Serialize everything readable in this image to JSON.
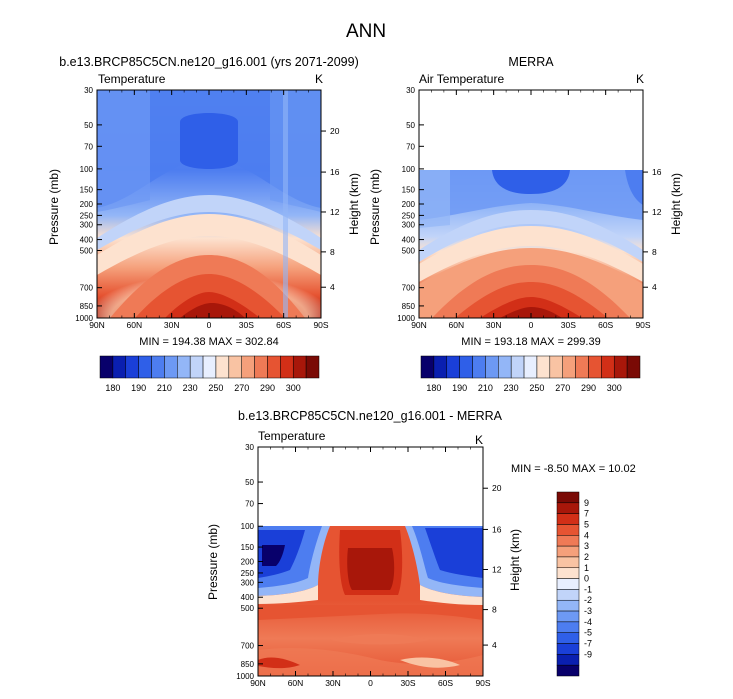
{
  "figure": {
    "title": "ANN"
  },
  "panels": [
    {
      "id": "p1",
      "header": "b.e13.BRCP85C5CN.ne120_g16.001 (yrs 2071-2099)",
      "left_label": "Temperature",
      "units": "K",
      "ylabel": "Pressure (mb)",
      "ylabel_right": "Height (km)",
      "stats": "MIN = 194.38  MAX = 302.84"
    },
    {
      "id": "p2",
      "header": "MERRA",
      "left_label": "Air Temperature",
      "units": "K",
      "ylabel": "Pressure (mb)",
      "ylabel_right": "Height (km)",
      "stats": "MIN = 193.18  MAX = 299.39"
    },
    {
      "id": "p3",
      "header": "b.e13.BRCP85C5CN.ne120_g16.001 - MERRA",
      "left_label": "Temperature",
      "units": "K",
      "ylabel": "Pressure (mb)",
      "ylabel_right": "Height (km)",
      "stats": "MIN =  -8.50  MAX =  10.02"
    }
  ],
  "chart_data": [
    {
      "type": "contour",
      "title": "b.e13.BRCP85C5CN.ne120_g16.001 (yrs 2071-2099)",
      "variable": "Temperature",
      "units": "K",
      "x_ticks": [
        "90N",
        "60N",
        "30N",
        "0",
        "30S",
        "60S",
        "90S"
      ],
      "y_ticks_pressure": [
        "30",
        "50",
        "70",
        "100",
        "150",
        "200",
        "250",
        "300",
        "400",
        "500",
        "700",
        "850",
        "1000"
      ],
      "y_ticks_height": [
        "20",
        "16",
        "12",
        "8",
        "4"
      ],
      "min": 194.38,
      "max": 302.84,
      "levels_description": "cold (~195-205 K) near 70 mb at equator; warm (~300 K) near 1000 mb at equator"
    },
    {
      "type": "contour",
      "title": "MERRA",
      "variable": "Air Temperature",
      "units": "K",
      "x_ticks": [
        "90N",
        "60N",
        "30N",
        "0",
        "30S",
        "60S",
        "90S"
      ],
      "y_ticks_pressure": [
        "30",
        "50",
        "70",
        "100",
        "150",
        "200",
        "250",
        "300",
        "400",
        "500",
        "700",
        "850",
        "1000"
      ],
      "y_ticks_height": [
        "16",
        "12",
        "8",
        "4"
      ],
      "min": 193.18,
      "max": 299.39,
      "data_top_pressure": 100
    },
    {
      "type": "contour",
      "title": "b.e13.BRCP85C5CN.ne120_g16.001 - MERRA",
      "variable": "Temperature",
      "units": "K",
      "x_ticks": [
        "90N",
        "60N",
        "30N",
        "0",
        "30S",
        "60S",
        "90S"
      ],
      "y_ticks_pressure": [
        "30",
        "50",
        "70",
        "100",
        "150",
        "200",
        "250",
        "300",
        "400",
        "500",
        "700",
        "850",
        "1000"
      ],
      "y_ticks_height": [
        "20",
        "16",
        "12",
        "8",
        "4"
      ],
      "min": -8.5,
      "max": 10.02,
      "data_top_pressure": 100
    }
  ],
  "colorbar_abs": {
    "labels": [
      "180",
      "190",
      "210",
      "230",
      "250",
      "270",
      "290",
      "300"
    ],
    "colors": [
      "#08006b",
      "#0a1fb0",
      "#1a3fd8",
      "#2f5fe8",
      "#4d7df0",
      "#6d99f4",
      "#93b6f7",
      "#c1d4f9",
      "#e8efff",
      "#fde2cf",
      "#f9c3a3",
      "#f5a07b",
      "#ef7a56",
      "#e65432",
      "#d22f17",
      "#a8170a",
      "#7a0a05"
    ]
  },
  "colorbar_diff": {
    "labels": [
      "9",
      "7",
      "5",
      "4",
      "3",
      "2",
      "1",
      "0",
      "-1",
      "-2",
      "-3",
      "-4",
      "-5",
      "-7",
      "-9"
    ],
    "colors": [
      "#7a0a05",
      "#a8170a",
      "#d22f17",
      "#e65432",
      "#ef7a56",
      "#f5a07b",
      "#f9c3a3",
      "#fde2cf",
      "#e8efff",
      "#c1d4f9",
      "#93b6f7",
      "#6d99f4",
      "#4d7df0",
      "#2f5fe8",
      "#1a3fd8",
      "#0a1fb0",
      "#08006b"
    ]
  }
}
